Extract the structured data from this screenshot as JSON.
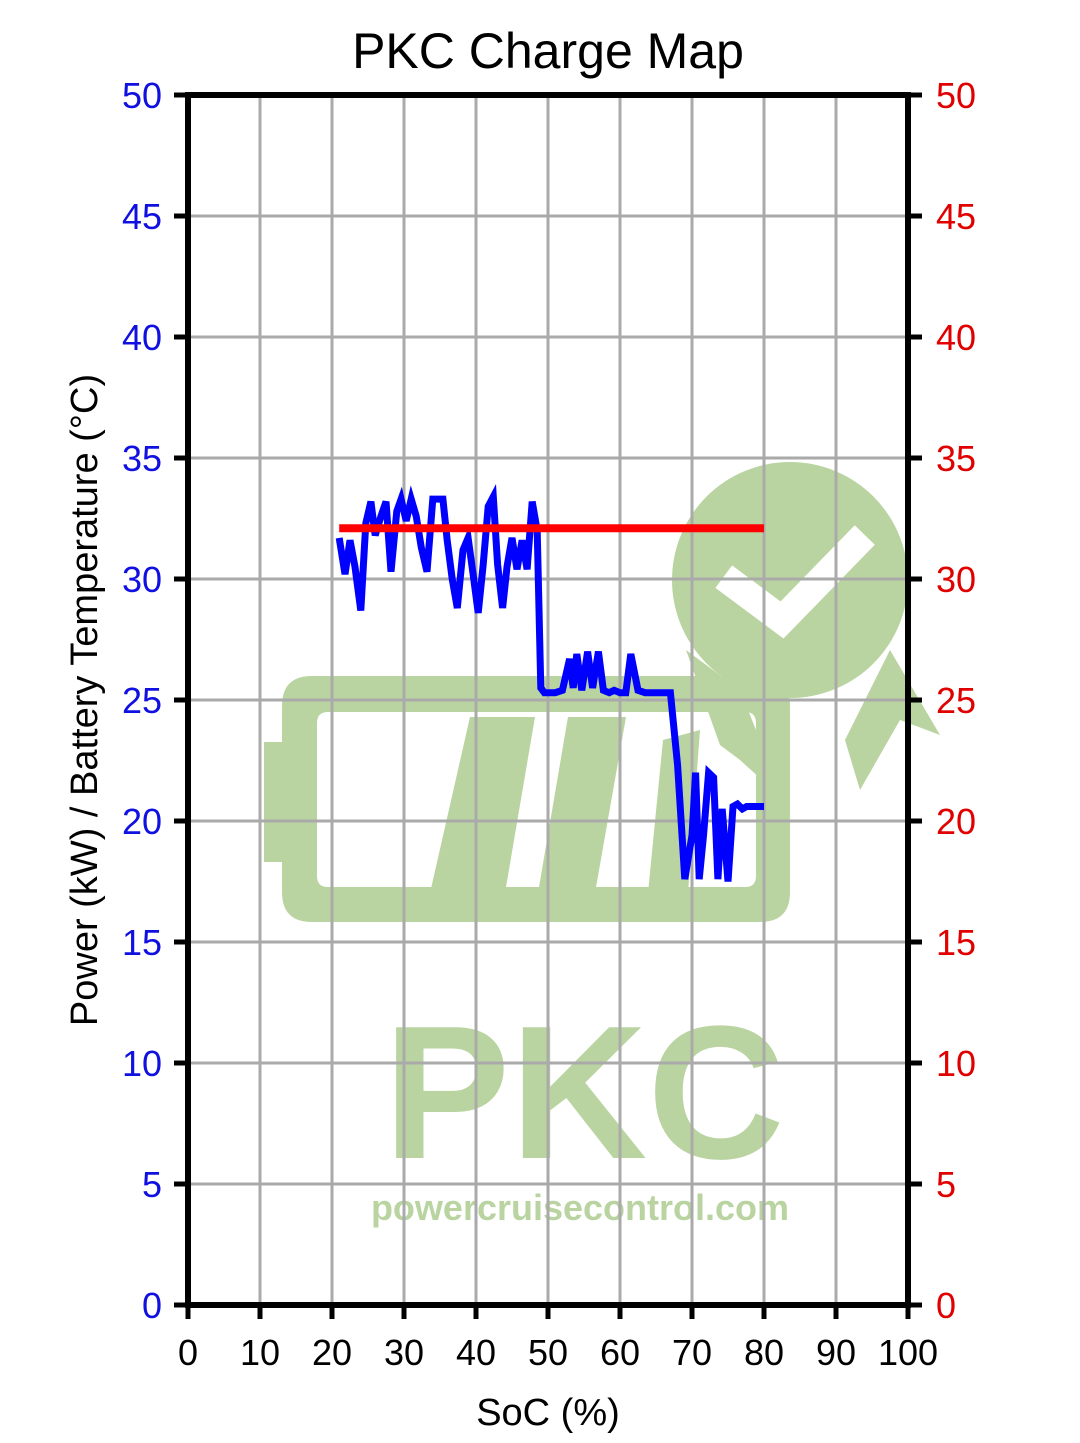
{
  "chart_data": {
    "type": "line",
    "title": "PKC Charge Map",
    "xlabel": "SoC (%)",
    "ylabel": "Power (kW) / Battery Temperature (°C)",
    "xlim": [
      0,
      100
    ],
    "ylim": [
      0,
      50
    ],
    "y2lim": [
      0,
      50
    ],
    "x_ticks": [
      "0",
      "10",
      "20",
      "30",
      "40",
      "50",
      "60",
      "70",
      "80",
      "90",
      "100"
    ],
    "y_ticks": [
      "0",
      "5",
      "10",
      "15",
      "20",
      "25",
      "30",
      "35",
      "40",
      "45",
      "50"
    ],
    "grid": true,
    "colors": {
      "left_axis": "#1010e0",
      "right_axis": "#e00000",
      "power": "#0000ff",
      "temperature": "#ff0000",
      "grid": "#aaaaaa",
      "watermark": "#b9d4a0"
    },
    "series": [
      {
        "axis": "left",
        "color": "#0000ff",
        "x": [
          21,
          21.8,
          22.5,
          23.2,
          24,
          24.7,
          25.4,
          26,
          26.8,
          27.5,
          28.2,
          29,
          29.6,
          30.3,
          31,
          31.7,
          32.4,
          33.2,
          34,
          34.7,
          35.4,
          36,
          36.7,
          37.4,
          38.2,
          38.9,
          39.6,
          40.3,
          41,
          41.7,
          42.4,
          43,
          43.7,
          44.3,
          45,
          45.7,
          46.4,
          47.1,
          47.8,
          48.5,
          49,
          49.5,
          50,
          51,
          52,
          53,
          53.5,
          54,
          54.7,
          55.5,
          56.2,
          57,
          57.7,
          58.5,
          59.2,
          60,
          60.8,
          61.5,
          62.5,
          63.5,
          64.3,
          65,
          66,
          67,
          68,
          69,
          70,
          70.5,
          71,
          71.6,
          72.3,
          73,
          73.6,
          74.2,
          75,
          75.7,
          76.3,
          77,
          77.6,
          78.2,
          79,
          80
        ],
        "y": [
          31.7,
          30.2,
          31.6,
          30.5,
          28.7,
          32.3,
          33.2,
          31.8,
          32.6,
          33.2,
          30.3,
          32.8,
          33.3,
          32.4,
          33.3,
          32.6,
          31.3,
          30.3,
          33.3,
          33.3,
          33.3,
          31.6,
          30,
          28.8,
          31.2,
          31.7,
          30.2,
          28.6,
          30.6,
          33,
          33.4,
          30.6,
          28.8,
          30.5,
          31.7,
          30.4,
          31.6,
          30.4,
          33.2,
          32,
          25.5,
          25.3,
          25.3,
          25.3,
          25.4,
          26.7,
          25.5,
          26.9,
          25.4,
          27,
          25.5,
          27,
          25.4,
          25.3,
          25.4,
          25.3,
          25.3,
          26.9,
          25.4,
          25.3,
          25.3,
          25.3,
          25.3,
          25.3,
          22.3,
          17.6,
          19.4,
          22,
          17.6,
          19.4,
          22,
          21.8,
          17.6,
          20.5,
          17.5,
          20.6,
          20.7,
          20.5,
          20.6,
          20.6,
          20.6,
          20.6
        ]
      },
      {
        "axis": "right",
        "color": "#ff0000",
        "x": [
          21,
          80
        ],
        "y": [
          32.1,
          32.1
        ]
      }
    ]
  },
  "watermark": {
    "brand": "PKC",
    "url": "powercruisecontrol.com"
  }
}
